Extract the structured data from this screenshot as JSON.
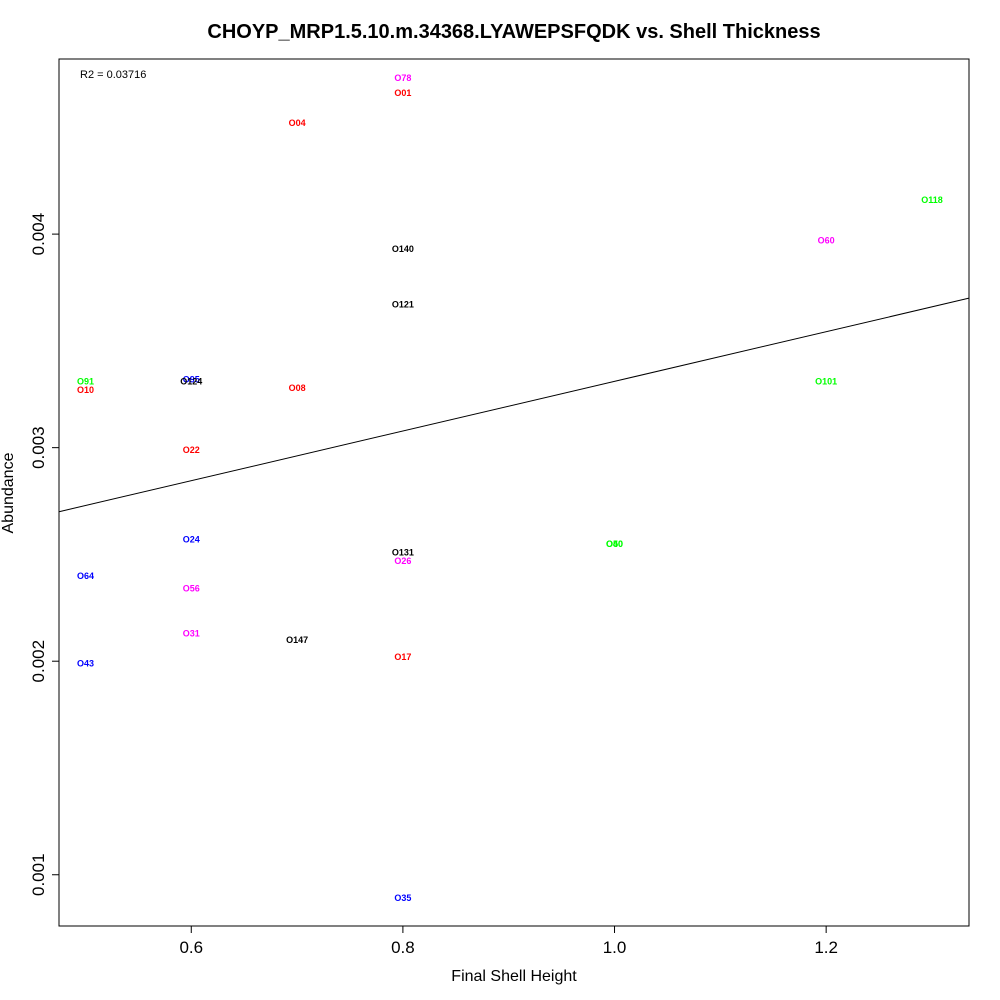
{
  "chart_data": {
    "type": "scatter",
    "title": "CHOYP_MRP1.5.10.m.34368.LYAWEPSFQDK vs. Shell Thickness",
    "xlabel": "Final Shell Height",
    "ylabel": "Abundance",
    "xlim": [
      0.475,
      1.335
    ],
    "ylim": [
      0.00076,
      0.00482
    ],
    "x_ticks": [
      0.6,
      0.8,
      1.0,
      1.2
    ],
    "x_tick_labels": [
      "0.6",
      "0.8",
      "1.0",
      "1.2"
    ],
    "y_ticks": [
      0.001,
      0.002,
      0.003,
      0.004
    ],
    "y_tick_labels": [
      "0.001",
      "0.002",
      "0.003",
      "0.004"
    ],
    "grid": false,
    "annotation": "R2 = 0.03716",
    "regression_line": {
      "x": [
        0.475,
        1.335
      ],
      "y": [
        0.0027,
        0.0037
      ]
    },
    "colors": {
      "red": "#ff0000",
      "magenta": "#ff00ff",
      "blue": "#0000ff",
      "green": "#00ff00",
      "black": "#000000",
      "line": "#000000"
    },
    "points": [
      {
        "label": "O78",
        "x": 0.8,
        "y": 0.00473,
        "color": "#ff00ff"
      },
      {
        "label": "O01",
        "x": 0.8,
        "y": 0.00466,
        "color": "#ff0000"
      },
      {
        "label": "O04",
        "x": 0.7,
        "y": 0.00452,
        "color": "#ff0000"
      },
      {
        "label": "O118",
        "x": 1.3,
        "y": 0.00416,
        "color": "#00ff00"
      },
      {
        "label": "O60",
        "x": 1.2,
        "y": 0.00397,
        "color": "#ff00ff"
      },
      {
        "label": "O140",
        "x": 0.8,
        "y": 0.00393,
        "color": "#000000"
      },
      {
        "label": "O121",
        "x": 0.8,
        "y": 0.00367,
        "color": "#000000"
      },
      {
        "label": "O91",
        "x": 0.5,
        "y": 0.00331,
        "color": "#00ff00"
      },
      {
        "label": "O10",
        "x": 0.5,
        "y": 0.00327,
        "color": "#ff0000"
      },
      {
        "label": "O95",
        "x": 0.6,
        "y": 0.00332,
        "color": "#0000ff"
      },
      {
        "label": "O124",
        "x": 0.6,
        "y": 0.00331,
        "color": "#000000"
      },
      {
        "label": "O08",
        "x": 0.7,
        "y": 0.00328,
        "color": "#ff0000"
      },
      {
        "label": "O101",
        "x": 1.2,
        "y": 0.00331,
        "color": "#00ff00"
      },
      {
        "label": "O22",
        "x": 0.6,
        "y": 0.00299,
        "color": "#ff0000"
      },
      {
        "label": "O24",
        "x": 0.6,
        "y": 0.00257,
        "color": "#0000ff"
      },
      {
        "label": "O40",
        "x": 1.0,
        "y": 0.00255,
        "color": "#00ff00"
      },
      {
        "label": "O50",
        "x": 1.0,
        "y": 0.00255,
        "color": "#00ff00"
      },
      {
        "label": "O131",
        "x": 0.8,
        "y": 0.00251,
        "color": "#000000"
      },
      {
        "label": "O26",
        "x": 0.8,
        "y": 0.00247,
        "color": "#ff00ff"
      },
      {
        "label": "O64",
        "x": 0.5,
        "y": 0.0024,
        "color": "#0000ff"
      },
      {
        "label": "O56",
        "x": 0.6,
        "y": 0.00234,
        "color": "#ff00ff"
      },
      {
        "label": "O31",
        "x": 0.6,
        "y": 0.00213,
        "color": "#ff00ff"
      },
      {
        "label": "O147",
        "x": 0.7,
        "y": 0.0021,
        "color": "#000000"
      },
      {
        "label": "O17",
        "x": 0.8,
        "y": 0.00202,
        "color": "#ff0000"
      },
      {
        "label": "O43",
        "x": 0.5,
        "y": 0.00199,
        "color": "#0000ff"
      },
      {
        "label": "O35",
        "x": 0.8,
        "y": 0.00089,
        "color": "#0000ff"
      }
    ]
  }
}
